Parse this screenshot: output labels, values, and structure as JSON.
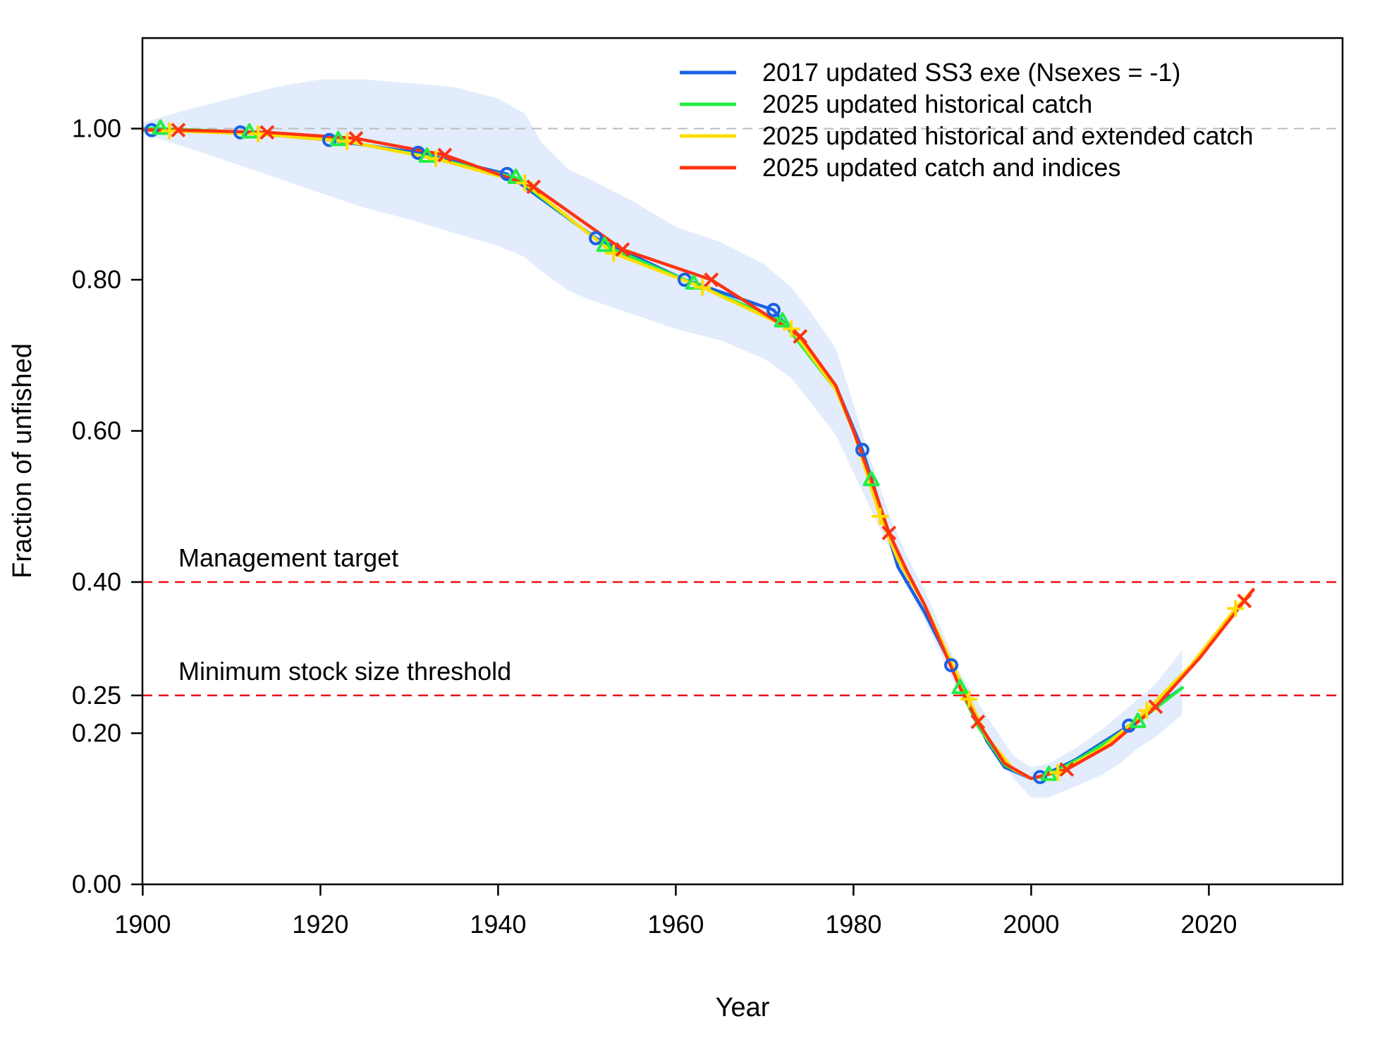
{
  "chart_data": {
    "type": "line",
    "title": "",
    "xlabel": "Year",
    "ylabel": "Fraction of unfished",
    "xlim": [
      1890,
      2025
    ],
    "ylim": [
      0,
      1.12
    ],
    "x_ticks": [
      1900,
      1920,
      1940,
      1960,
      1980,
      2000,
      2020
    ],
    "x_tick_labels": [
      "1900",
      "1920",
      "1940",
      "1960",
      "1980",
      "2000",
      "2020"
    ],
    "y_ticks": [
      0.0,
      0.2,
      0.25,
      0.4,
      0.6,
      0.8,
      1.0
    ],
    "y_tick_labels": [
      "0.00",
      "0.20",
      "0.25",
      "0.40",
      "0.60",
      "0.80",
      "1.00"
    ],
    "legend_position": "top-right",
    "reference_lines": [
      {
        "name": "unfished",
        "value": 1.0,
        "color": "#bbbbbb",
        "label": ""
      },
      {
        "name": "management-target",
        "value": 0.4,
        "color": "#ee1111",
        "label": "Management target"
      },
      {
        "name": "minimum-stock-size-threshold",
        "value": 0.25,
        "color": "#ee1111",
        "label": "Minimum stock size threshold"
      }
    ],
    "uncertainty_band": {
      "color": "#e3ecfc",
      "x": [
        1891,
        1895,
        1900,
        1905,
        1910,
        1915,
        1920,
        1925,
        1930,
        1935,
        1940,
        1943,
        1945,
        1948,
        1950,
        1955,
        1960,
        1965,
        1970,
        1973,
        1975,
        1978,
        1980,
        1982,
        1984,
        1986,
        1988,
        1990,
        1992,
        1994,
        1996,
        1998,
        2000,
        2002,
        2005,
        2008,
        2010,
        2012,
        2014,
        2017
      ],
      "lower": [
        1.0,
        0.998,
        0.993,
        0.975,
        0.955,
        0.935,
        0.915,
        0.895,
        0.88,
        0.862,
        0.845,
        0.83,
        0.81,
        0.785,
        0.775,
        0.755,
        0.735,
        0.72,
        0.695,
        0.67,
        0.64,
        0.595,
        0.545,
        0.495,
        0.445,
        0.395,
        0.35,
        0.3,
        0.25,
        0.21,
        0.175,
        0.14,
        0.115,
        0.115,
        0.13,
        0.145,
        0.16,
        0.18,
        0.195,
        0.225
      ],
      "upper": [
        1.0,
        1.002,
        1.008,
        1.025,
        1.04,
        1.055,
        1.065,
        1.065,
        1.06,
        1.055,
        1.04,
        1.02,
        0.98,
        0.945,
        0.935,
        0.905,
        0.87,
        0.85,
        0.82,
        0.79,
        0.76,
        0.71,
        0.635,
        0.56,
        0.49,
        0.435,
        0.39,
        0.335,
        0.28,
        0.24,
        0.205,
        0.17,
        0.155,
        0.16,
        0.18,
        0.205,
        0.225,
        0.245,
        0.265,
        0.31
      ]
    },
    "series": [
      {
        "name": "2017 updated SS3 exe (Nsexes = -1)",
        "color": "#1a5fe6",
        "marker": "circle",
        "x": [
          1891,
          1901,
          1911,
          1921,
          1931,
          1941,
          1951,
          1961,
          1971,
          1978,
          1981,
          1983,
          1985,
          1988,
          1991,
          1993,
          1995,
          1997,
          2000,
          2001,
          2005,
          2011,
          2017
        ],
        "values": [
          1.0,
          0.998,
          0.995,
          0.985,
          0.968,
          0.94,
          0.855,
          0.8,
          0.76,
          0.66,
          0.575,
          0.5,
          0.42,
          0.36,
          0.29,
          0.24,
          0.19,
          0.155,
          0.14,
          0.142,
          0.165,
          0.21,
          0.26
        ]
      },
      {
        "name": "2025 updated historical catch",
        "color": "#22ee44",
        "marker": "triangle",
        "x": [
          1892,
          1902,
          1912,
          1922,
          1932,
          1942,
          1952,
          1962,
          1972,
          1978,
          1980,
          1982,
          1984,
          1986,
          1988,
          1990,
          1992,
          1994,
          1997,
          2000,
          2002,
          2006,
          2012,
          2017
        ],
        "values": [
          1.001,
          1.0,
          0.995,
          0.985,
          0.963,
          0.935,
          0.845,
          0.795,
          0.745,
          0.655,
          0.6,
          0.535,
          0.465,
          0.41,
          0.37,
          0.32,
          0.26,
          0.21,
          0.158,
          0.14,
          0.145,
          0.17,
          0.215,
          0.26
        ]
      },
      {
        "name": "2025 updated historical and extended catch",
        "color": "#ffdd00",
        "marker": "plus",
        "x": [
          1893,
          1903,
          1913,
          1923,
          1933,
          1943,
          1953,
          1963,
          1973,
          1978,
          1980,
          1983,
          1985,
          1988,
          1990,
          1993,
          1995,
          1998,
          2000,
          2003,
          2008,
          2013,
          2018,
          2023,
          2025
        ],
        "values": [
          0.999,
          0.997,
          0.993,
          0.983,
          0.96,
          0.928,
          0.835,
          0.79,
          0.735,
          0.655,
          0.6,
          0.487,
          0.43,
          0.37,
          0.32,
          0.245,
          0.195,
          0.152,
          0.14,
          0.148,
          0.18,
          0.23,
          0.29,
          0.365,
          0.39
        ]
      },
      {
        "name": "2025 updated catch and indices",
        "color": "#ff3311",
        "marker": "x",
        "x": [
          1894,
          1904,
          1914,
          1924,
          1934,
          1944,
          1954,
          1964,
          1974,
          1978,
          1980,
          1982,
          1984,
          1986,
          1988,
          1990,
          1992,
          1994,
          1997,
          2000,
          2004,
          2009,
          2014,
          2019,
          2024,
          2025
        ],
        "values": [
          0.999,
          0.998,
          0.995,
          0.987,
          0.965,
          0.923,
          0.84,
          0.8,
          0.725,
          0.66,
          0.6,
          0.535,
          0.465,
          0.415,
          0.37,
          0.315,
          0.26,
          0.215,
          0.16,
          0.14,
          0.152,
          0.185,
          0.235,
          0.3,
          0.375,
          0.39
        ]
      }
    ]
  }
}
